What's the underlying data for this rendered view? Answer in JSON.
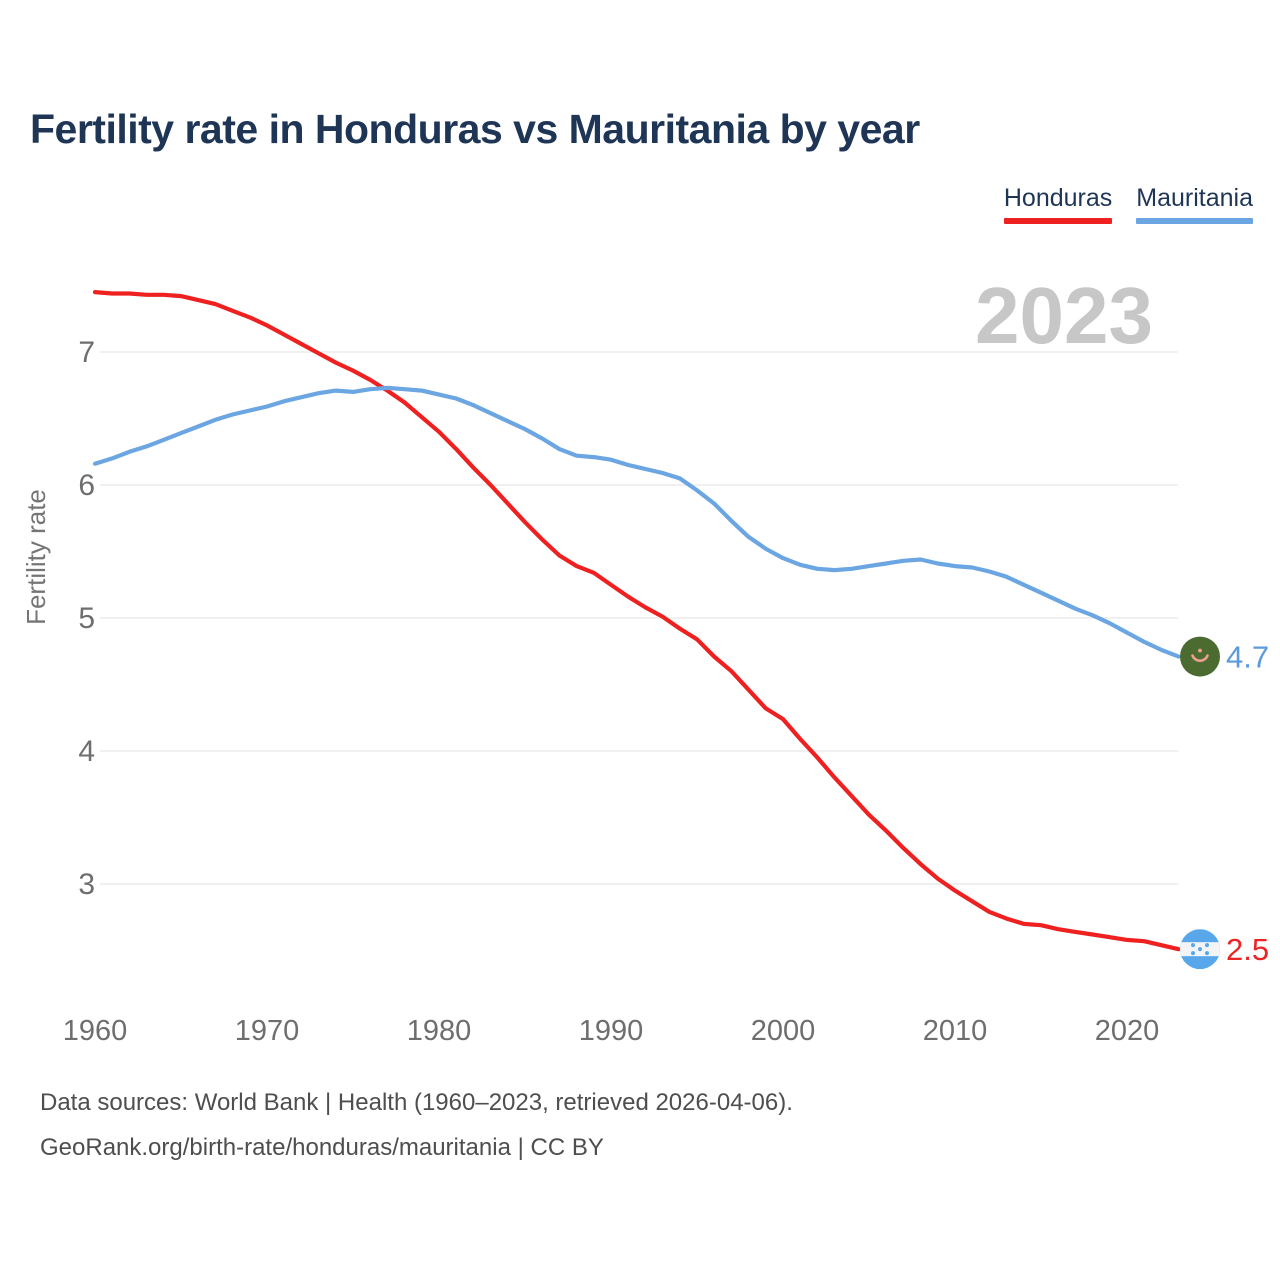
{
  "header": {
    "title": "Fertility rate in Honduras vs Mauritania by year"
  },
  "legend": [
    {
      "label": "Honduras",
      "color": "#ef2020"
    },
    {
      "label": "Mauritania",
      "color": "#6ba6e3"
    }
  ],
  "watermark": "2023",
  "end_labels": [
    {
      "series": "Mauritania",
      "value": "4.7",
      "flag": "mauritania",
      "color": "#5b9bdb"
    },
    {
      "series": "Honduras",
      "value": "2.5",
      "flag": "honduras",
      "color": "#ec2424"
    }
  ],
  "footer": {
    "line1": "Data sources: World Bank | Health (1960–2023, retrieved 2026-04-06).",
    "line2": "GeoRank.org/birth-rate/honduras/mauritania | CC BY"
  },
  "chart_data": {
    "type": "line",
    "title": "Fertility rate in Honduras vs Mauritania by year",
    "xlabel": "",
    "ylabel": "Fertility rate",
    "x_ticks": [
      1960,
      1970,
      1980,
      1990,
      2000,
      2010,
      2020
    ],
    "y_ticks": [
      7,
      6,
      5,
      4,
      3
    ],
    "ylim": [
      2.3,
      7.65
    ],
    "xlim": [
      1960,
      2023
    ],
    "grid": true,
    "legend_position": "top-right",
    "x": [
      1960,
      1961,
      1962,
      1963,
      1964,
      1965,
      1966,
      1967,
      1968,
      1969,
      1970,
      1971,
      1972,
      1973,
      1974,
      1975,
      1976,
      1977,
      1978,
      1979,
      1980,
      1981,
      1982,
      1983,
      1984,
      1985,
      1986,
      1987,
      1988,
      1989,
      1990,
      1991,
      1992,
      1993,
      1994,
      1995,
      1996,
      1997,
      1998,
      1999,
      2000,
      2001,
      2002,
      2003,
      2004,
      2005,
      2006,
      2007,
      2008,
      2009,
      2010,
      2011,
      2012,
      2013,
      2014,
      2015,
      2016,
      2017,
      2018,
      2019,
      2020,
      2021,
      2022,
      2023
    ],
    "series": [
      {
        "name": "Honduras",
        "color": "#ef2020",
        "values": [
          7.45,
          7.44,
          7.44,
          7.43,
          7.43,
          7.42,
          7.39,
          7.36,
          7.31,
          7.26,
          7.2,
          7.13,
          7.06,
          6.99,
          6.92,
          6.86,
          6.79,
          6.71,
          6.62,
          6.51,
          6.4,
          6.27,
          6.13,
          6.0,
          5.86,
          5.72,
          5.59,
          5.47,
          5.39,
          5.34,
          5.25,
          5.16,
          5.08,
          5.01,
          4.92,
          4.84,
          4.71,
          4.6,
          4.46,
          4.32,
          4.24,
          4.09,
          3.95,
          3.8,
          3.66,
          3.52,
          3.4,
          3.27,
          3.15,
          3.04,
          2.95,
          2.87,
          2.79,
          2.74,
          2.7,
          2.69,
          2.66,
          2.64,
          2.62,
          2.6,
          2.58,
          2.57,
          2.54,
          2.51
        ]
      },
      {
        "name": "Mauritania",
        "color": "#6ba6e3",
        "values": [
          6.16,
          6.2,
          6.25,
          6.29,
          6.34,
          6.39,
          6.44,
          6.49,
          6.53,
          6.56,
          6.59,
          6.63,
          6.66,
          6.69,
          6.71,
          6.7,
          6.72,
          6.73,
          6.72,
          6.71,
          6.68,
          6.65,
          6.6,
          6.54,
          6.48,
          6.42,
          6.35,
          6.27,
          6.22,
          6.21,
          6.19,
          6.15,
          6.12,
          6.09,
          6.05,
          5.96,
          5.86,
          5.73,
          5.61,
          5.52,
          5.45,
          5.4,
          5.37,
          5.36,
          5.37,
          5.39,
          5.41,
          5.43,
          5.44,
          5.41,
          5.39,
          5.38,
          5.35,
          5.31,
          5.25,
          5.19,
          5.13,
          5.07,
          5.02,
          4.96,
          4.89,
          4.82,
          4.76,
          4.71
        ]
      }
    ]
  }
}
